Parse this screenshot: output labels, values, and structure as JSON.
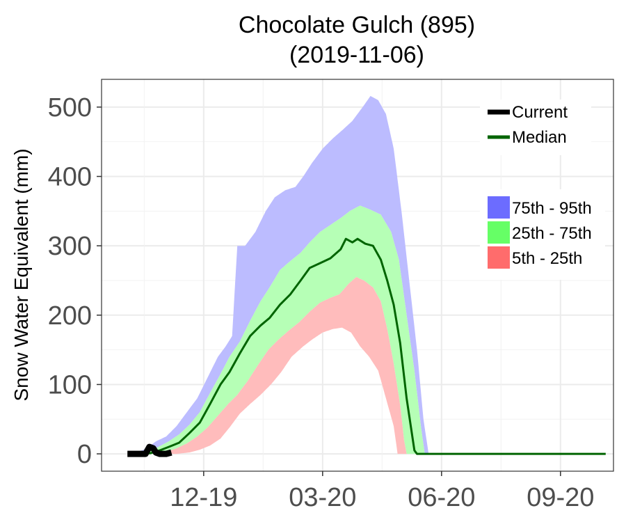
{
  "chart_data": {
    "type": "area",
    "title": "Chocolate Gulch (895)",
    "subtitle": "(2019-11-06)",
    "ylabel": "Snow Water Equivalent (mm)",
    "xlabel": "",
    "ylim": [
      -25,
      540
    ],
    "xlim": [
      "2019-10-01",
      "2020-10-31"
    ],
    "yticks": [
      0,
      100,
      200,
      300,
      400,
      500
    ],
    "xticks": [
      {
        "date": "2019-12-19",
        "label": "12-19"
      },
      {
        "date": "2020-03-20",
        "label": "03-20"
      },
      {
        "date": "2020-06-20",
        "label": "06-20"
      },
      {
        "date": "2020-09-20",
        "label": "09-20"
      }
    ],
    "grid": true,
    "legend_lines_position": "top-right",
    "legend_bands_position": "right",
    "colors": {
      "band_75_95": "#bcbcff",
      "band_25_75": "#b6ffb6",
      "band_5_25": "#ffbcbc",
      "median": "#006400",
      "current": "#000000",
      "legend_75_95": "#6c6cff",
      "legend_25_75": "#66ff66",
      "legend_5_25": "#ff6c6c"
    },
    "legend": {
      "lines": [
        {
          "key": "current",
          "label": "Current"
        },
        {
          "key": "median",
          "label": "Median"
        }
      ],
      "bands": [
        {
          "key": "legend_75_95",
          "label": "75th - 95th"
        },
        {
          "key": "legend_25_75",
          "label": "25th - 75th"
        },
        {
          "key": "legend_5_25",
          "label": "5th - 25th"
        }
      ]
    },
    "series": [
      {
        "key": "p95",
        "points": [
          [
            "2019-10-21",
            0
          ],
          [
            "2019-10-28",
            2
          ],
          [
            "2019-11-05",
            8
          ],
          [
            "2019-11-12",
            18
          ],
          [
            "2019-11-20",
            25
          ],
          [
            "2019-11-28",
            40
          ],
          [
            "2019-12-06",
            60
          ],
          [
            "2019-12-14",
            80
          ],
          [
            "2019-12-22",
            110
          ],
          [
            "2019-12-30",
            140
          ],
          [
            "2020-01-05",
            155
          ],
          [
            "2020-01-10",
            170
          ],
          [
            "2020-01-14",
            300
          ],
          [
            "2020-01-20",
            300
          ],
          [
            "2020-01-28",
            320
          ],
          [
            "2020-02-05",
            350
          ],
          [
            "2020-02-12",
            370
          ],
          [
            "2020-02-20",
            380
          ],
          [
            "2020-02-28",
            385
          ],
          [
            "2020-03-05",
            400
          ],
          [
            "2020-03-12",
            420
          ],
          [
            "2020-03-20",
            440
          ],
          [
            "2020-03-28",
            455
          ],
          [
            "2020-04-05",
            468
          ],
          [
            "2020-04-12",
            480
          ],
          [
            "2020-04-20",
            500
          ],
          [
            "2020-04-26",
            516
          ],
          [
            "2020-05-02",
            510
          ],
          [
            "2020-05-08",
            490
          ],
          [
            "2020-05-14",
            440
          ],
          [
            "2020-05-20",
            350
          ],
          [
            "2020-05-26",
            250
          ],
          [
            "2020-06-01",
            150
          ],
          [
            "2020-06-06",
            50
          ],
          [
            "2020-06-10",
            0
          ]
        ]
      },
      {
        "key": "p75",
        "points": [
          [
            "2019-10-28",
            0
          ],
          [
            "2019-11-05",
            2
          ],
          [
            "2019-11-14",
            10
          ],
          [
            "2019-11-22",
            18
          ],
          [
            "2019-11-30",
            28
          ],
          [
            "2019-12-08",
            42
          ],
          [
            "2019-12-16",
            60
          ],
          [
            "2019-12-24",
            88
          ],
          [
            "2020-01-01",
            115
          ],
          [
            "2020-01-08",
            140
          ],
          [
            "2020-01-16",
            162
          ],
          [
            "2020-01-24",
            192
          ],
          [
            "2020-02-01",
            220
          ],
          [
            "2020-02-08",
            240
          ],
          [
            "2020-02-16",
            265
          ],
          [
            "2020-02-24",
            278
          ],
          [
            "2020-03-03",
            290
          ],
          [
            "2020-03-10",
            305
          ],
          [
            "2020-03-18",
            320
          ],
          [
            "2020-03-26",
            330
          ],
          [
            "2020-04-03",
            340
          ],
          [
            "2020-04-10",
            350
          ],
          [
            "2020-04-18",
            358
          ],
          [
            "2020-04-26",
            352
          ],
          [
            "2020-05-04",
            345
          ],
          [
            "2020-05-12",
            320
          ],
          [
            "2020-05-18",
            280
          ],
          [
            "2020-05-24",
            200
          ],
          [
            "2020-05-30",
            120
          ],
          [
            "2020-06-04",
            40
          ],
          [
            "2020-06-07",
            0
          ]
        ]
      },
      {
        "key": "median",
        "points": [
          [
            "2019-10-28",
            0
          ],
          [
            "2019-11-08",
            1
          ],
          [
            "2019-11-15",
            5
          ],
          [
            "2019-11-22",
            10
          ],
          [
            "2019-11-30",
            16
          ],
          [
            "2019-12-08",
            30
          ],
          [
            "2019-12-16",
            45
          ],
          [
            "2019-12-24",
            72
          ],
          [
            "2020-01-01",
            100
          ],
          [
            "2020-01-08",
            118
          ],
          [
            "2020-01-16",
            145
          ],
          [
            "2020-01-24",
            170
          ],
          [
            "2020-02-01",
            185
          ],
          [
            "2020-02-08",
            196
          ],
          [
            "2020-02-16",
            215
          ],
          [
            "2020-02-24",
            230
          ],
          [
            "2020-03-03",
            250
          ],
          [
            "2020-03-10",
            268
          ],
          [
            "2020-03-18",
            275
          ],
          [
            "2020-03-26",
            282
          ],
          [
            "2020-04-03",
            295
          ],
          [
            "2020-04-07",
            310
          ],
          [
            "2020-04-12",
            305
          ],
          [
            "2020-04-16",
            310
          ],
          [
            "2020-04-22",
            303
          ],
          [
            "2020-04-28",
            300
          ],
          [
            "2020-05-04",
            280
          ],
          [
            "2020-05-09",
            250
          ],
          [
            "2020-05-14",
            215
          ],
          [
            "2020-05-19",
            160
          ],
          [
            "2020-05-24",
            80
          ],
          [
            "2020-05-30",
            5
          ],
          [
            "2020-06-01",
            0
          ],
          [
            "2020-10-25",
            0
          ]
        ]
      },
      {
        "key": "p25",
        "points": [
          [
            "2019-11-10",
            0
          ],
          [
            "2019-11-20",
            3
          ],
          [
            "2019-11-28",
            8
          ],
          [
            "2019-12-06",
            15
          ],
          [
            "2019-12-14",
            25
          ],
          [
            "2019-12-22",
            38
          ],
          [
            "2019-12-30",
            55
          ],
          [
            "2020-01-07",
            72
          ],
          [
            "2020-01-14",
            85
          ],
          [
            "2020-01-22",
            105
          ],
          [
            "2020-01-30",
            128
          ],
          [
            "2020-02-07",
            150
          ],
          [
            "2020-02-15",
            165
          ],
          [
            "2020-02-23",
            178
          ],
          [
            "2020-03-02",
            190
          ],
          [
            "2020-03-10",
            205
          ],
          [
            "2020-03-18",
            218
          ],
          [
            "2020-03-26",
            225
          ],
          [
            "2020-04-02",
            230
          ],
          [
            "2020-04-09",
            245
          ],
          [
            "2020-04-15",
            255
          ],
          [
            "2020-04-21",
            250
          ],
          [
            "2020-04-28",
            240
          ],
          [
            "2020-05-04",
            220
          ],
          [
            "2020-05-09",
            180
          ],
          [
            "2020-05-14",
            130
          ],
          [
            "2020-05-19",
            70
          ],
          [
            "2020-05-22",
            20
          ],
          [
            "2020-05-24",
            0
          ]
        ]
      },
      {
        "key": "p5",
        "points": [
          [
            "2019-11-28",
            0
          ],
          [
            "2019-12-08",
            2
          ],
          [
            "2019-12-16",
            6
          ],
          [
            "2019-12-24",
            12
          ],
          [
            "2020-01-01",
            22
          ],
          [
            "2020-01-08",
            38
          ],
          [
            "2020-01-16",
            58
          ],
          [
            "2020-01-24",
            72
          ],
          [
            "2020-02-01",
            85
          ],
          [
            "2020-02-09",
            100
          ],
          [
            "2020-02-17",
            118
          ],
          [
            "2020-02-25",
            140
          ],
          [
            "2020-03-05",
            155
          ],
          [
            "2020-03-12",
            165
          ],
          [
            "2020-03-20",
            175
          ],
          [
            "2020-03-28",
            180
          ],
          [
            "2020-04-04",
            182
          ],
          [
            "2020-04-11",
            175
          ],
          [
            "2020-04-18",
            155
          ],
          [
            "2020-04-25",
            140
          ],
          [
            "2020-05-02",
            120
          ],
          [
            "2020-05-08",
            80
          ],
          [
            "2020-05-14",
            40
          ],
          [
            "2020-05-17",
            0
          ]
        ]
      },
      {
        "key": "current",
        "points": [
          [
            "2019-10-21",
            0
          ],
          [
            "2019-10-28",
            0
          ],
          [
            "2019-11-04",
            0
          ],
          [
            "2019-11-07",
            10
          ],
          [
            "2019-11-10",
            8
          ],
          [
            "2019-11-12",
            2
          ],
          [
            "2019-11-15",
            0
          ],
          [
            "2019-11-20",
            0
          ],
          [
            "2019-11-24",
            2
          ]
        ]
      }
    ]
  }
}
